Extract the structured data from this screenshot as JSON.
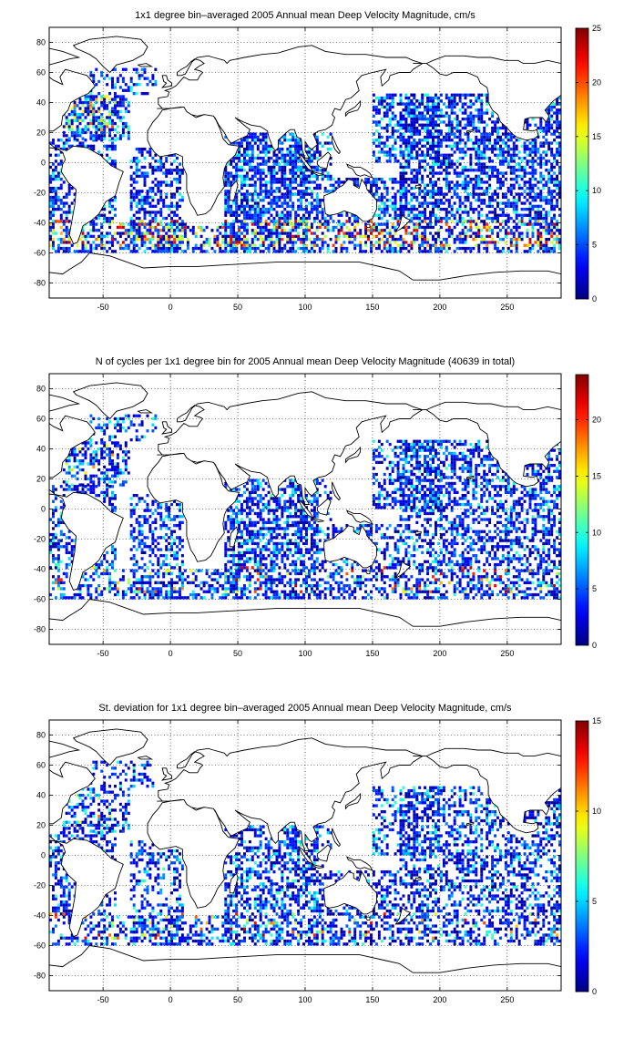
{
  "chart_data": [
    {
      "type": "heatmap",
      "title": "1x1 degree bin–averaged 2005 Annual mean Deep Velocity Magnitude, cm/s",
      "xlim": [
        -90,
        290
      ],
      "ylim": [
        -90,
        90
      ],
      "xticks": [
        -50,
        0,
        50,
        100,
        150,
        200,
        250
      ],
      "yticks": [
        80,
        60,
        40,
        20,
        0,
        -20,
        -40,
        -60,
        -80
      ],
      "grid": true,
      "colorbar": {
        "min": 0,
        "max": 25,
        "ticks": [
          0,
          5,
          10,
          15,
          20,
          25
        ],
        "colormap": "jet"
      },
      "density": 1.0,
      "hot": 0.35
    },
    {
      "type": "heatmap",
      "title": "N of cycles per 1x1 degree bin for 2005 Annual mean Deep Velocity Magnitude (40639 in total)",
      "xlim": [
        -90,
        290
      ],
      "ylim": [
        -90,
        90
      ],
      "xticks": [
        -50,
        0,
        50,
        100,
        150,
        200,
        250
      ],
      "yticks": [
        80,
        60,
        40,
        20,
        0,
        -20,
        -40,
        -60,
        -80
      ],
      "grid": true,
      "colorbar": {
        "min": 0,
        "max": 24,
        "ticks": [
          0,
          5,
          10,
          15,
          20
        ],
        "colormap": "jet"
      },
      "density": 0.8,
      "hot": 0.12
    },
    {
      "type": "heatmap",
      "title": "St. deviation for 1x1 degree bin–averaged 2005 Annual mean Deep Velocity Magnitude, cm/s",
      "xlim": [
        -90,
        290
      ],
      "ylim": [
        -90,
        90
      ],
      "xticks": [
        -50,
        0,
        50,
        100,
        150,
        200,
        250
      ],
      "yticks": [
        80,
        60,
        40,
        20,
        0,
        -20,
        -40,
        -60,
        -80
      ],
      "grid": true,
      "colorbar": {
        "min": 0,
        "max": 15,
        "ticks": [
          0,
          5,
          10,
          15
        ],
        "colormap": "jet"
      },
      "density": 0.75,
      "hot": 0.08
    }
  ]
}
